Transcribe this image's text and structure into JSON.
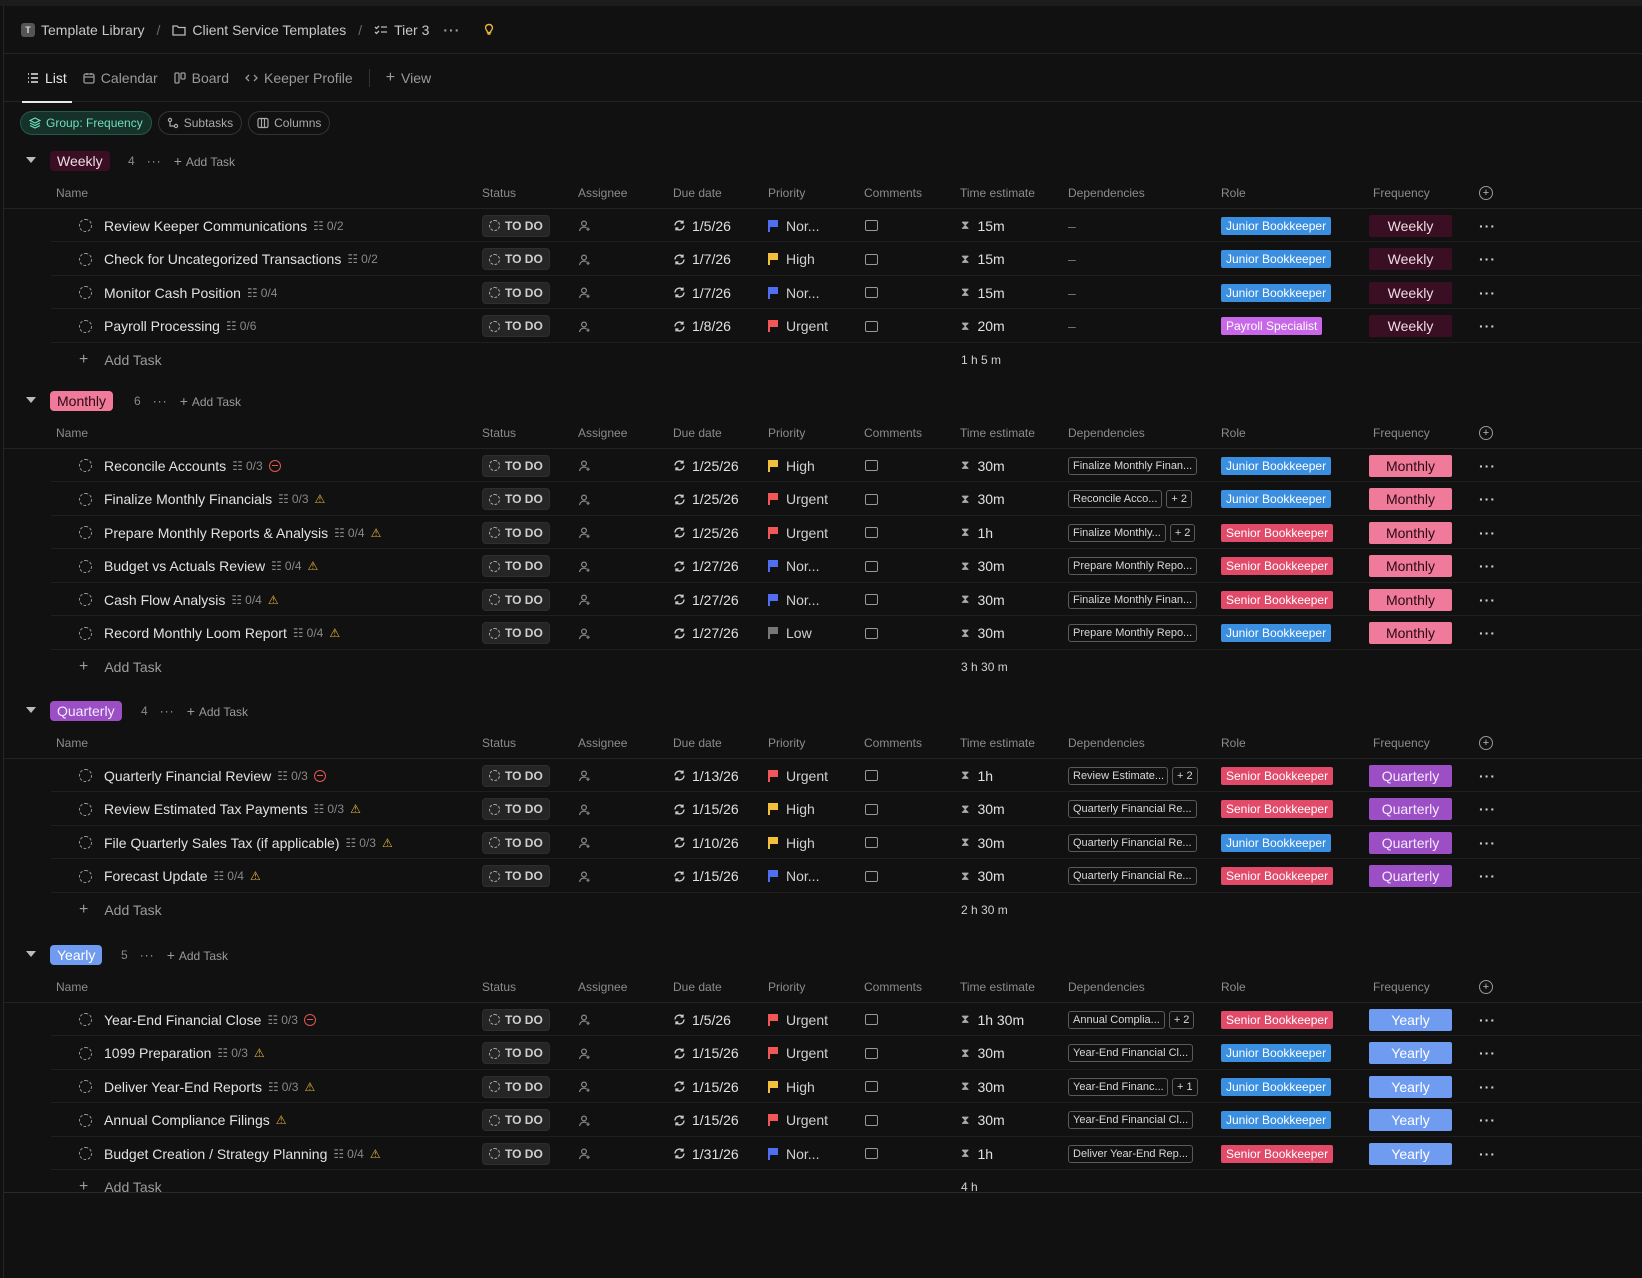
{
  "breadcrumb": {
    "workspace_initial": "T",
    "workspace": "Template Library",
    "folder": "Client Service Templates",
    "list": "Tier 3",
    "more": "···"
  },
  "tabs": [
    {
      "label": "List",
      "icon": "list-icon",
      "active": true
    },
    {
      "label": "Calendar",
      "icon": "calendar-icon"
    },
    {
      "label": "Board",
      "icon": "board-icon"
    },
    {
      "label": "Keeper Profile",
      "icon": "code-icon"
    },
    {
      "label": "View",
      "icon": "plus-icon"
    }
  ],
  "filters": [
    {
      "label": "Group: Frequency",
      "icon": "layers-icon",
      "active": true
    },
    {
      "label": "Subtasks",
      "icon": "subtasks-icon"
    },
    {
      "label": "Columns",
      "icon": "columns-icon"
    }
  ],
  "columns": [
    "Name",
    "Status",
    "Assignee",
    "Due date",
    "Priority",
    "Comments",
    "Time estimate",
    "Dependencies",
    "Role",
    "Frequency"
  ],
  "add_task_label": "Add Task",
  "status_label": "TO DO",
  "colors": {
    "junior": "#3b8fe0",
    "senior": "#e24a6a",
    "payroll": "#c868e8",
    "weekly_bg": "#3a0f24",
    "monthly_bg": "#f07a9a",
    "quarterly_bg": "#9c4fc4",
    "yearly_bg": "#6f9cf0",
    "urgent": "#f25757",
    "high": "#f2c03a",
    "normal": "#4f6ff0",
    "low": "#777777"
  },
  "groups": [
    {
      "name": "Weekly",
      "count": "4",
      "total": "1 h 5 m",
      "tasks": [
        {
          "name": "Review Keeper Communications",
          "sub": "0/2",
          "flag": "",
          "due": "1/5/26",
          "priority": "Nor...",
          "ptype": "normal",
          "est": "15m",
          "deps": [],
          "more": "",
          "role": "Junior Bookkeeper",
          "rtype": "junior"
        },
        {
          "name": "Check for Uncategorized Transactions",
          "sub": "0/2",
          "flag": "",
          "due": "1/7/26",
          "priority": "High",
          "ptype": "high",
          "est": "15m",
          "deps": [],
          "more": "",
          "role": "Junior Bookkeeper",
          "rtype": "junior"
        },
        {
          "name": "Monitor Cash Position",
          "sub": "0/4",
          "flag": "",
          "due": "1/7/26",
          "priority": "Nor...",
          "ptype": "normal",
          "est": "15m",
          "deps": [],
          "more": "",
          "role": "Junior Bookkeeper",
          "rtype": "junior"
        },
        {
          "name": "Payroll Processing",
          "sub": "0/6",
          "flag": "",
          "due": "1/8/26",
          "priority": "Urgent",
          "ptype": "urgent",
          "est": "20m",
          "deps": [],
          "more": "",
          "role": "Payroll Specialist",
          "rtype": "payroll"
        }
      ]
    },
    {
      "name": "Monthly",
      "count": "6",
      "total": "3 h 30 m",
      "tasks": [
        {
          "name": "Reconcile Accounts",
          "sub": "0/3",
          "flag": "block",
          "due": "1/25/26",
          "priority": "High",
          "ptype": "high",
          "est": "30m",
          "deps": [
            "Finalize Monthly Finan..."
          ],
          "more": "",
          "role": "Junior Bookkeeper",
          "rtype": "junior"
        },
        {
          "name": "Finalize Monthly Financials",
          "sub": "0/3",
          "flag": "warn",
          "due": "1/25/26",
          "priority": "Urgent",
          "ptype": "urgent",
          "est": "30m",
          "deps": [
            "Reconcile Acco..."
          ],
          "more": "+ 2",
          "role": "Junior Bookkeeper",
          "rtype": "junior"
        },
        {
          "name": "Prepare Monthly Reports & Analysis",
          "sub": "0/4",
          "flag": "warn",
          "due": "1/25/26",
          "priority": "Urgent",
          "ptype": "urgent",
          "est": "1h",
          "deps": [
            "Finalize Monthly..."
          ],
          "more": "+ 2",
          "role": "Senior Bookkeeper",
          "rtype": "senior"
        },
        {
          "name": "Budget vs Actuals Review",
          "sub": "0/4",
          "flag": "warn",
          "due": "1/27/26",
          "priority": "Nor...",
          "ptype": "normal",
          "est": "30m",
          "deps": [
            "Prepare Monthly Repo..."
          ],
          "more": "",
          "role": "Senior Bookkeeper",
          "rtype": "senior"
        },
        {
          "name": "Cash Flow Analysis",
          "sub": "0/4",
          "flag": "warn",
          "due": "1/27/26",
          "priority": "Nor...",
          "ptype": "normal",
          "est": "30m",
          "deps": [
            "Finalize Monthly Finan..."
          ],
          "more": "",
          "role": "Senior Bookkeeper",
          "rtype": "senior"
        },
        {
          "name": "Record Monthly Loom Report",
          "sub": "0/4",
          "flag": "warn",
          "due": "1/27/26",
          "priority": "Low",
          "ptype": "low",
          "est": "30m",
          "deps": [
            "Prepare Monthly Repo..."
          ],
          "more": "",
          "role": "Junior Bookkeeper",
          "rtype": "junior"
        }
      ]
    },
    {
      "name": "Quarterly",
      "count": "4",
      "total": "2 h 30 m",
      "tasks": [
        {
          "name": "Quarterly Financial Review",
          "sub": "0/3",
          "flag": "block",
          "due": "1/13/26",
          "priority": "Urgent",
          "ptype": "urgent",
          "est": "1h",
          "deps": [
            "Review Estimate..."
          ],
          "more": "+ 2",
          "role": "Senior Bookkeeper",
          "rtype": "senior"
        },
        {
          "name": "Review Estimated Tax Payments",
          "sub": "0/3",
          "flag": "warn",
          "due": "1/15/26",
          "priority": "High",
          "ptype": "high",
          "est": "30m",
          "deps": [
            "Quarterly Financial Re..."
          ],
          "more": "",
          "role": "Senior Bookkeeper",
          "rtype": "senior"
        },
        {
          "name": "File Quarterly Sales Tax (if applicable)",
          "sub": "0/3",
          "flag": "warn",
          "due": "1/10/26",
          "priority": "High",
          "ptype": "high",
          "est": "30m",
          "deps": [
            "Quarterly Financial Re..."
          ],
          "more": "",
          "role": "Junior Bookkeeper",
          "rtype": "junior"
        },
        {
          "name": "Forecast Update",
          "sub": "0/4",
          "flag": "warn",
          "due": "1/15/26",
          "priority": "Nor...",
          "ptype": "normal",
          "est": "30m",
          "deps": [
            "Quarterly Financial Re..."
          ],
          "more": "",
          "role": "Senior Bookkeeper",
          "rtype": "senior"
        }
      ]
    },
    {
      "name": "Yearly",
      "count": "5",
      "total": "4 h",
      "tasks": [
        {
          "name": "Year-End Financial Close",
          "sub": "0/3",
          "flag": "block",
          "due": "1/5/26",
          "priority": "Urgent",
          "ptype": "urgent",
          "est": "1h 30m",
          "deps": [
            "Annual Complia..."
          ],
          "more": "+ 2",
          "role": "Senior Bookkeeper",
          "rtype": "senior"
        },
        {
          "name": "1099 Preparation",
          "sub": "0/3",
          "flag": "warn",
          "due": "1/15/26",
          "priority": "Urgent",
          "ptype": "urgent",
          "est": "30m",
          "deps": [
            "Year-End Financial Cl..."
          ],
          "more": "",
          "role": "Junior Bookkeeper",
          "rtype": "junior"
        },
        {
          "name": "Deliver Year-End Reports",
          "sub": "0/3",
          "flag": "warn",
          "due": "1/15/26",
          "priority": "High",
          "ptype": "high",
          "est": "30m",
          "deps": [
            "Year-End Financ..."
          ],
          "more": "+ 1",
          "role": "Junior Bookkeeper",
          "rtype": "junior"
        },
        {
          "name": "Annual Compliance Filings",
          "sub": "",
          "flag": "warn",
          "due": "1/15/26",
          "priority": "Urgent",
          "ptype": "urgent",
          "est": "30m",
          "deps": [
            "Year-End Financial Cl..."
          ],
          "more": "",
          "role": "Junior Bookkeeper",
          "rtype": "junior"
        },
        {
          "name": "Budget Creation / Strategy Planning",
          "sub": "0/4",
          "flag": "warn",
          "due": "1/31/26",
          "priority": "Nor...",
          "ptype": "normal",
          "est": "1h",
          "deps": [
            "Deliver Year-End Rep..."
          ],
          "more": "",
          "role": "Senior Bookkeeper",
          "rtype": "senior"
        }
      ]
    }
  ]
}
